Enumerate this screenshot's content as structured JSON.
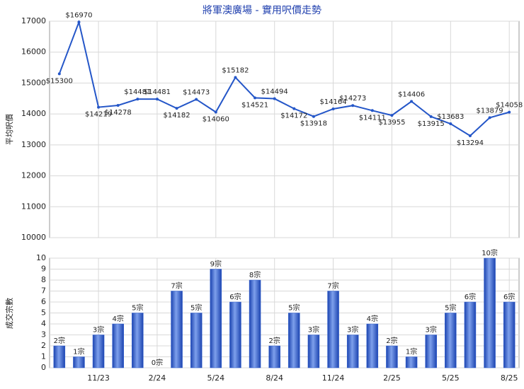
{
  "chart_data": [
    {
      "type": "line",
      "title": "將軍澳廣場 - 實用呎價走勢",
      "y_label": "平均呎價",
      "color": "#2456c8",
      "values": [
        15300,
        16970,
        14219,
        14278,
        14481,
        14481,
        14182,
        14473,
        14060,
        15182,
        14521,
        14494,
        14172,
        13918,
        14164,
        14273,
        14111,
        13955,
        14406,
        13915,
        13683,
        13294,
        13879,
        14058
      ],
      "value_labels": [
        "$15300",
        "$16970",
        "$14219",
        "$14278",
        "$14481",
        "$14481",
        "$14182",
        "$14473",
        "$14060",
        "$15182",
        "$14521",
        "$14494",
        "$14172",
        "$13918",
        "$14164",
        "$14273",
        "$14111",
        "$13955",
        "$14406",
        "$13915",
        "$13683",
        "$13294",
        "$13879",
        "$14058"
      ],
      "ylim": [
        10000,
        17000
      ],
      "yticks": [
        10000,
        11000,
        12000,
        13000,
        14000,
        15000,
        16000,
        17000
      ],
      "grid": true
    },
    {
      "type": "bar",
      "y_label": "成交宗數",
      "color": "#2f5fd0",
      "categories": [
        null,
        null,
        "11/23",
        null,
        null,
        "2/24",
        null,
        null,
        "5/24",
        null,
        null,
        "8/24",
        null,
        null,
        "11/24",
        null,
        null,
        "2/25",
        null,
        null,
        "5/25",
        null,
        null,
        "8/25"
      ],
      "values": [
        2,
        1,
        3,
        4,
        5,
        0,
        7,
        5,
        9,
        6,
        8,
        2,
        5,
        3,
        7,
        3,
        4,
        2,
        1,
        3,
        5,
        6,
        10,
        6
      ],
      "value_labels": [
        "2宗",
        "1宗",
        "3宗",
        "4宗",
        "5宗",
        "0宗",
        "7宗",
        "5宗",
        "9宗",
        "6宗",
        "8宗",
        "2宗",
        "5宗",
        "3宗",
        "7宗",
        "3宗",
        "4宗",
        "2宗",
        "1宗",
        "3宗",
        "5宗",
        "6宗",
        "10宗",
        "6宗"
      ],
      "ylim": [
        0,
        10
      ],
      "yticks": [
        0,
        1,
        2,
        3,
        4,
        5,
        6,
        7,
        8,
        9,
        10
      ],
      "grid": true
    }
  ]
}
